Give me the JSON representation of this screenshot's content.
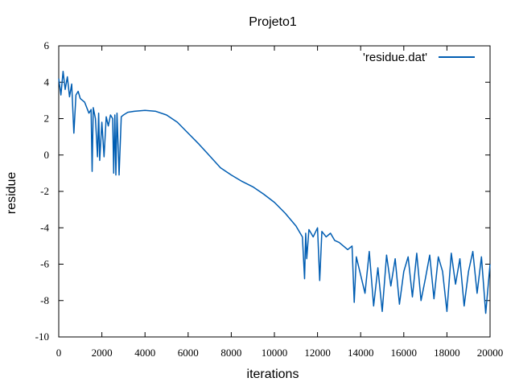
{
  "chart_data": {
    "type": "line",
    "title": "Projeto1",
    "xlabel": "iterations",
    "ylabel": "residue",
    "xlim": [
      0,
      20000
    ],
    "ylim": [
      -10,
      6
    ],
    "xticks": [
      0,
      2000,
      4000,
      6000,
      8000,
      10000,
      12000,
      14000,
      16000,
      18000,
      20000
    ],
    "yticks": [
      -10,
      -8,
      -6,
      -4,
      -2,
      0,
      2,
      4,
      6
    ],
    "grid": false,
    "legend_position": "top-right",
    "line_color": "#005db2",
    "series": [
      {
        "name": "'residue.dat'",
        "x": [
          0,
          100,
          200,
          300,
          400,
          500,
          600,
          700,
          800,
          900,
          1000,
          1200,
          1400,
          1500,
          1550,
          1600,
          1700,
          1800,
          1850,
          1900,
          2000,
          2100,
          2200,
          2300,
          2400,
          2500,
          2550,
          2600,
          2650,
          2700,
          2800,
          2900,
          3000,
          3200,
          3500,
          4000,
          4500,
          5000,
          5500,
          6000,
          6500,
          7000,
          7500,
          8000,
          8500,
          9000,
          9500,
          10000,
          10500,
          11000,
          11300,
          11400,
          11450,
          11500,
          11600,
          11700,
          11800,
          12000,
          12100,
          12200,
          12400,
          12600,
          12800,
          13000,
          13200,
          13400,
          13600,
          13700,
          13800,
          14000,
          14200,
          14400,
          14600,
          14800,
          15000,
          15200,
          15400,
          15600,
          15800,
          16000,
          16200,
          16400,
          16600,
          16800,
          17000,
          17200,
          17400,
          17600,
          17800,
          18000,
          18200,
          18400,
          18600,
          18800,
          19000,
          19200,
          19400,
          19600,
          19800,
          20000
        ],
        "y": [
          4.2,
          3.3,
          4.6,
          3.6,
          4.3,
          3.2,
          3.9,
          1.2,
          3.3,
          3.5,
          3.1,
          2.9,
          2.3,
          2.5,
          -0.9,
          2.6,
          2.0,
          -0.1,
          2.3,
          -0.3,
          1.8,
          -0.1,
          2.1,
          1.6,
          2.2,
          2.0,
          -1.0,
          2.2,
          -1.1,
          2.3,
          -1.1,
          2.1,
          2.2,
          2.35,
          2.4,
          2.45,
          2.4,
          2.2,
          1.8,
          1.2,
          0.6,
          -0.05,
          -0.7,
          -1.1,
          -1.45,
          -1.75,
          -2.15,
          -2.6,
          -3.2,
          -3.9,
          -4.5,
          -6.8,
          -4.3,
          -5.7,
          -4.1,
          -4.3,
          -4.5,
          -4.0,
          -6.9,
          -4.2,
          -4.5,
          -4.3,
          -4.7,
          -4.8,
          -5.0,
          -5.2,
          -5.0,
          -8.1,
          -5.6,
          -6.6,
          -7.6,
          -5.3,
          -8.3,
          -6.2,
          -8.6,
          -5.5,
          -7.2,
          -5.7,
          -8.2,
          -6.4,
          -5.6,
          -7.8,
          -5.4,
          -8.0,
          -6.8,
          -5.5,
          -7.9,
          -5.6,
          -6.4,
          -8.6,
          -5.4,
          -7.1,
          -5.7,
          -8.3,
          -6.4,
          -5.3,
          -7.6,
          -5.6,
          -8.7,
          -6.0
        ]
      }
    ]
  }
}
